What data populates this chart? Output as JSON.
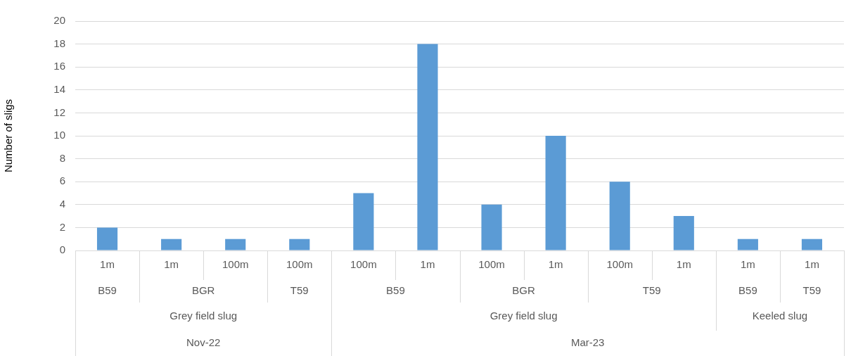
{
  "chart_data": {
    "type": "bar",
    "ylabel": "Number of sligs",
    "categories": [
      [
        "1m",
        "B59",
        "Grey field slug",
        "Nov-22"
      ],
      [
        "1m",
        "BGR",
        null,
        null
      ],
      [
        "100m",
        null,
        null,
        null
      ],
      [
        "100m",
        "T59",
        null,
        null
      ],
      [
        "100m",
        "B59",
        "Grey field slug",
        "Mar-23"
      ],
      [
        "1m",
        null,
        null,
        null
      ],
      [
        "100m",
        "BGR",
        null,
        null
      ],
      [
        "1m",
        null,
        null,
        null
      ],
      [
        "100m",
        "T59",
        null,
        null
      ],
      [
        "1m",
        null,
        null,
        null
      ],
      [
        "1m",
        "B59",
        "Keeled slug",
        null
      ],
      [
        "1m",
        "T59",
        null,
        null
      ]
    ],
    "values": [
      2,
      1,
      1,
      1,
      5,
      18,
      4,
      10,
      6,
      3,
      1,
      1
    ],
    "color": "#5b9bd5",
    "ylim": [
      0,
      20
    ],
    "yticks": [
      0,
      2,
      4,
      6,
      8,
      10,
      12,
      14,
      16,
      18,
      20
    ],
    "grid": "y",
    "legend": false
  }
}
